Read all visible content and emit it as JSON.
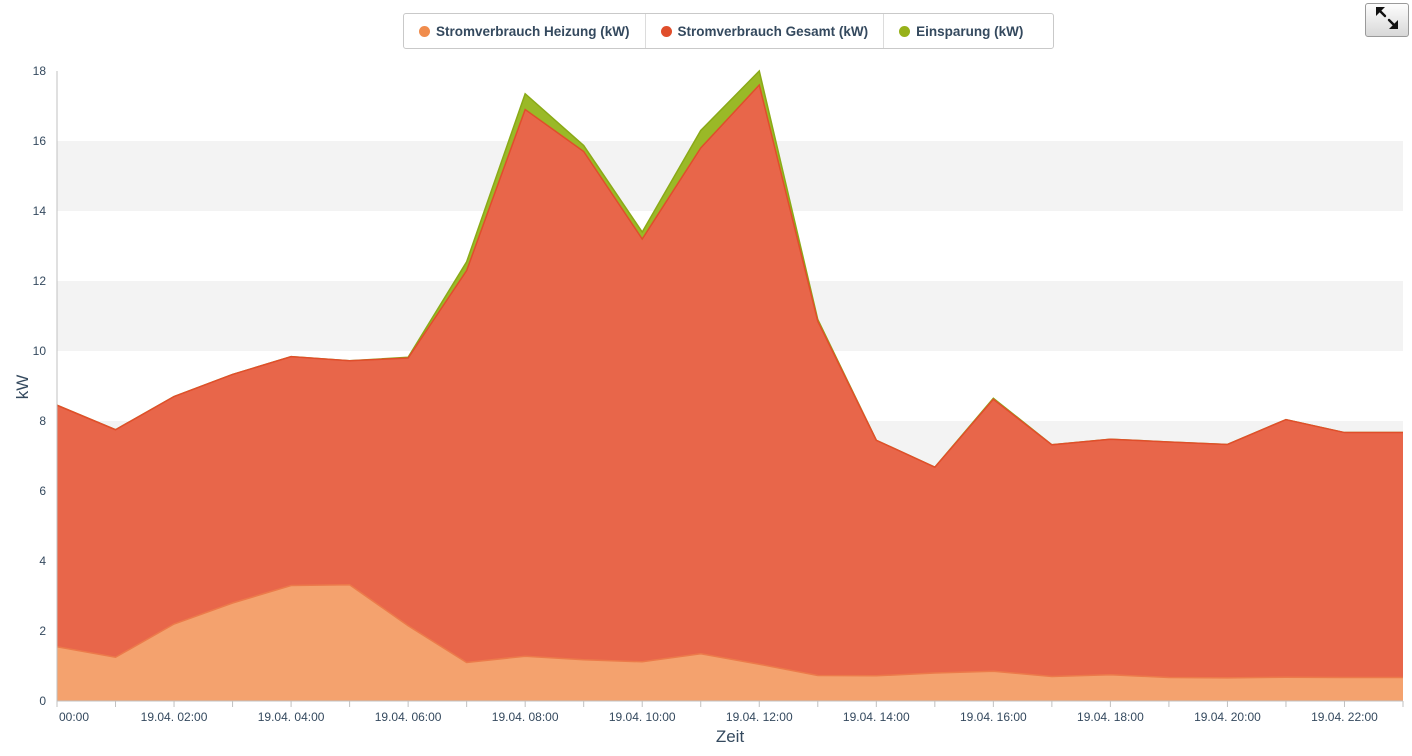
{
  "legend": {
    "items": [
      {
        "label": "Stromverbrauch Heizung (kW)",
        "color": "#f08c4d"
      },
      {
        "label": "Stromverbrauch Gesamt (kW)",
        "color": "#e04e2b"
      },
      {
        "label": "Einsparung (kW)",
        "color": "#97b11a"
      }
    ]
  },
  "toolbar": {
    "expand_icon": "expand-arrows-icon"
  },
  "chart_data": {
    "type": "area",
    "stacked": true,
    "xlabel": "Zeit",
    "ylabel": "kW",
    "ylim": [
      0,
      18
    ],
    "yticks": [
      0,
      2,
      4,
      6,
      8,
      10,
      12,
      14,
      16,
      18
    ],
    "x_tick_labels": [
      "00:00",
      "19.04. 02:00",
      "19.04. 04:00",
      "19.04. 06:00",
      "19.04. 08:00",
      "19.04. 10:00",
      "19.04. 12:00",
      "19.04. 14:00",
      "19.04. 16:00",
      "19.04. 18:00",
      "19.04. 20:00",
      "19.04. 22:00"
    ],
    "x": [
      "00:00",
      "01:00",
      "02:00",
      "03:00",
      "04:00",
      "05:00",
      "06:00",
      "07:00",
      "08:00",
      "09:00",
      "10:00",
      "11:00",
      "12:00",
      "13:00",
      "14:00",
      "15:00",
      "16:00",
      "17:00",
      "18:00",
      "19:00",
      "20:00",
      "21:00",
      "22:00",
      "23:00"
    ],
    "grid_bands": true,
    "legend_position": "top-center",
    "series": [
      {
        "name": "Stromverbrauch Heizung (kW)",
        "color": "#f4a26e",
        "line_color": "#ec7a4a",
        "values": [
          1.55,
          1.25,
          2.2,
          2.8,
          3.3,
          3.32,
          2.15,
          1.1,
          1.28,
          1.18,
          1.12,
          1.35,
          1.05,
          0.73,
          0.72,
          0.8,
          0.85,
          0.7,
          0.75,
          0.67,
          0.66,
          0.68,
          0.67,
          0.67
        ]
      },
      {
        "name": "Stromverbrauch Gesamt (kW)",
        "color": "#e8664a",
        "line_color": "#e04e2b",
        "values": [
          8.45,
          7.75,
          8.7,
          9.33,
          9.84,
          9.72,
          9.8,
          12.3,
          16.9,
          15.7,
          13.2,
          15.8,
          17.6,
          10.85,
          7.45,
          6.68,
          8.62,
          7.32,
          7.48,
          7.4,
          7.33,
          8.04,
          7.67,
          7.67
        ]
      },
      {
        "name": "Einsparung (kW)",
        "color": "#9ab927",
        "line_color": "#8aaa17",
        "values": [
          8.45,
          7.75,
          8.7,
          9.33,
          9.84,
          9.72,
          9.82,
          12.55,
          17.35,
          15.87,
          13.4,
          16.3,
          18.0,
          10.9,
          7.45,
          6.68,
          8.65,
          7.32,
          7.48,
          7.4,
          7.33,
          8.04,
          7.67,
          7.67
        ]
      }
    ]
  }
}
